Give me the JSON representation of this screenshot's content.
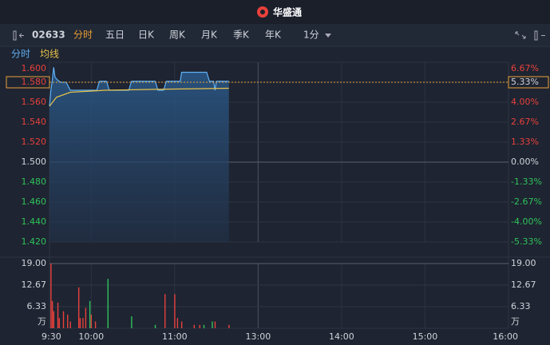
{
  "app": {
    "logo": "华盛通",
    "code": "02633",
    "tabs": [
      "分时",
      "五日",
      "日K",
      "周K",
      "月K",
      "季K",
      "年K"
    ],
    "interval": "1分"
  },
  "chart_data": [
    {
      "type": "line",
      "xlim": [
        0,
        330
      ],
      "xticks": [
        {
          "value": 0,
          "label": "9:30"
        },
        {
          "value": 30,
          "label": "10:00"
        },
        {
          "value": 90,
          "label": "11:00"
        },
        {
          "value": 150,
          "label": "13:00"
        },
        {
          "value": 210,
          "label": "14:00"
        },
        {
          "value": 270,
          "label": "15:00"
        },
        {
          "value": 330,
          "label": "16:00"
        }
      ],
      "ylim": [
        1.42,
        1.6
      ],
      "yticks": [
        {
          "value": 1.6,
          "label": "1.600"
        },
        {
          "value": 1.58,
          "label": "1.580"
        },
        {
          "value": 1.56,
          "label": "1.560"
        },
        {
          "value": 1.54,
          "label": "1.540"
        },
        {
          "value": 1.52,
          "label": "1.520"
        },
        {
          "value": 1.5,
          "label": "1.500"
        },
        {
          "value": 1.48,
          "label": "1.480"
        },
        {
          "value": 1.46,
          "label": "1.460"
        },
        {
          "value": 1.44,
          "label": "1.440"
        },
        {
          "value": 1.42,
          "label": "1.420"
        }
      ],
      "y2lim": [
        -5.33,
        6.67
      ],
      "y2ticks": [
        {
          "value": 6.67,
          "label": "6.67%"
        },
        {
          "value": 5.33,
          "label": "5.33%"
        },
        {
          "value": 4,
          "label": "4.00%"
        },
        {
          "value": 2.67,
          "label": "2.67%"
        },
        {
          "value": 1.33,
          "label": "1.33%"
        },
        {
          "value": 0,
          "label": "0.00%"
        },
        {
          "value": -1.33,
          "label": "-1.33%"
        },
        {
          "value": -2.67,
          "label": "-2.67%"
        },
        {
          "value": -4,
          "label": "-4.00%"
        },
        {
          "value": -5.33,
          "label": "-5.33%"
        }
      ],
      "last_price": {
        "value": 1.58,
        "label": "1.580"
      },
      "last_change": {
        "value": 5.33,
        "label": "5.33%"
      },
      "series": [
        {
          "name": "分时",
          "color": "#5fb0f5",
          "x": [
            0,
            1,
            2,
            3,
            4,
            6,
            8,
            12,
            15,
            34,
            36,
            41,
            43,
            57,
            59,
            76,
            78,
            82,
            84,
            94,
            95,
            113,
            115,
            118,
            119,
            120,
            129
          ],
          "values": [
            1.556,
            1.572,
            1.582,
            1.595,
            1.585,
            1.582,
            1.58,
            1.58,
            1.572,
            1.572,
            1.581,
            1.581,
            1.572,
            1.572,
            1.581,
            1.581,
            1.572,
            1.572,
            1.581,
            1.581,
            1.59,
            1.59,
            1.581,
            1.581,
            1.572,
            1.581,
            1.581
          ]
        },
        {
          "name": "均线",
          "color": "#e8c24a",
          "x": [
            0,
            5,
            15,
            40,
            80,
            129
          ],
          "values": [
            1.556,
            1.565,
            1.57,
            1.572,
            1.573,
            1.574
          ]
        }
      ]
    },
    {
      "type": "bar",
      "xlim": [
        0,
        330
      ],
      "ylim": [
        0,
        19
      ],
      "yticks": [
        {
          "value": 19,
          "label": "19.00"
        },
        12.67,
        6.33
      ],
      "unit": "万",
      "x": [
        1,
        2,
        3,
        6,
        7,
        10,
        13,
        15,
        21,
        22,
        24,
        26,
        29,
        30,
        33,
        42,
        59,
        76,
        83,
        90,
        92,
        95,
        104,
        108,
        111,
        117,
        119,
        129
      ],
      "values": [
        19,
        8,
        5,
        7.5,
        3,
        5,
        4,
        2,
        12,
        3,
        3,
        6,
        8,
        4,
        2,
        14.5,
        3.5,
        1,
        10,
        10,
        3,
        2,
        1,
        1,
        1,
        2,
        2,
        1
      ],
      "colors": [
        "#e8413c",
        "#e8413c",
        "#e8413c",
        "#e8413c",
        "#e8413c",
        "#e8413c",
        "#e8413c",
        "#e8413c",
        "#e8413c",
        "#e8413c",
        "#e8413c",
        "#e8413c",
        "#2fc25b",
        "#e8413c",
        "#e8413c",
        "#2fc25b",
        "#2fc25b",
        "#2fc25b",
        "#e8413c",
        "#e8413c",
        "#e8413c",
        "#e8413c",
        "#e8413c",
        "#e8413c",
        "#2fc25b",
        "#2fc25b",
        "#e8413c",
        "#e8413c"
      ]
    }
  ]
}
